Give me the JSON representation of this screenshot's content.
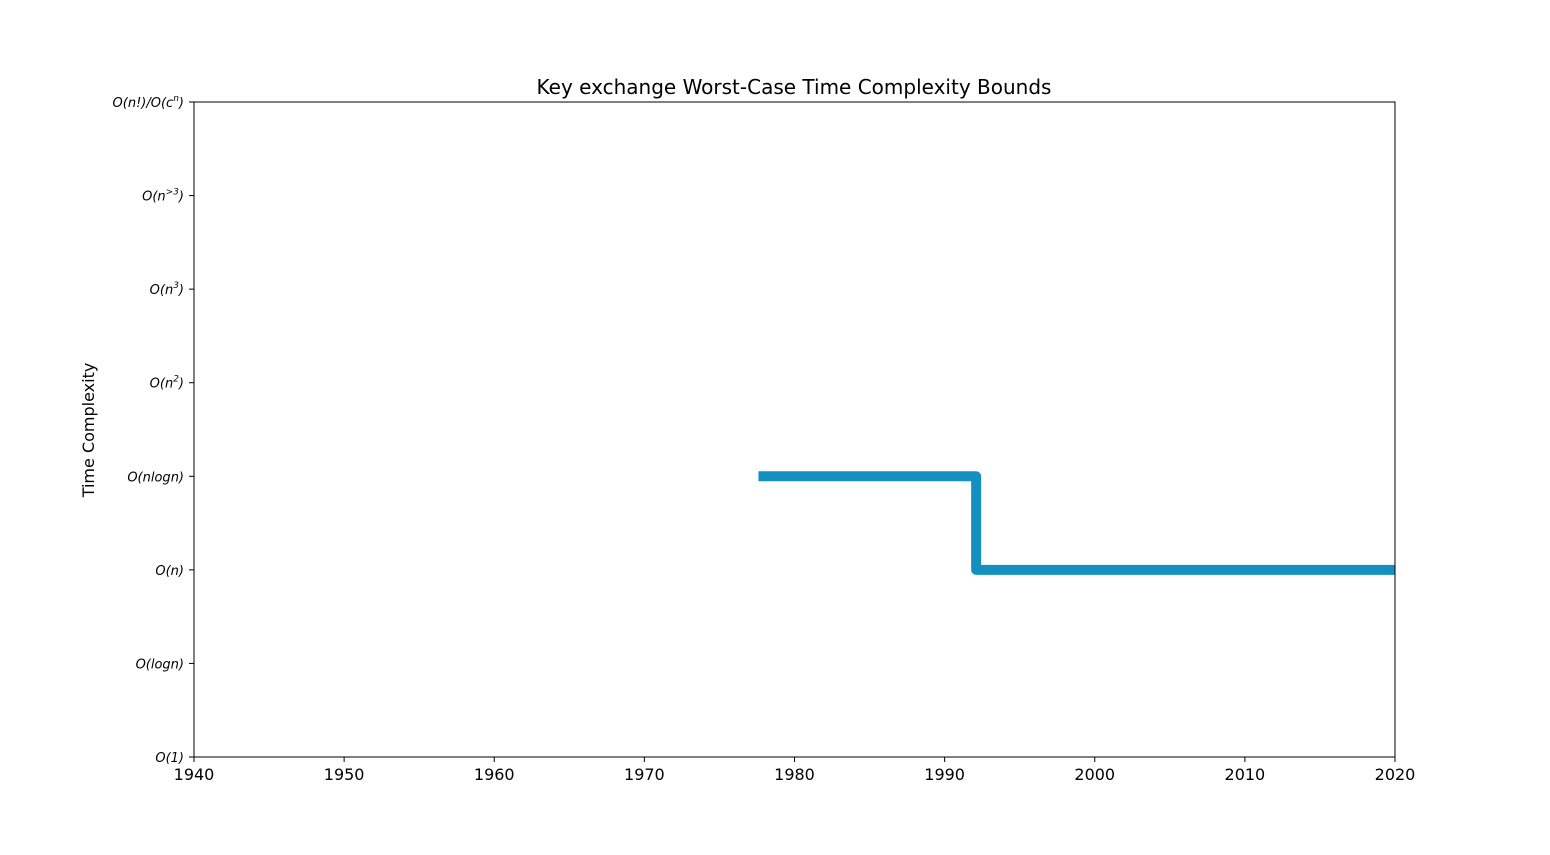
{
  "chart_data": {
    "type": "line",
    "title": "Key exchange Worst-Case Time Complexity Bounds",
    "xlabel": "",
    "ylabel": "Time Complexity",
    "xlim": [
      1940,
      2020
    ],
    "x_ticks": [
      "1940",
      "1950",
      "1960",
      "1970",
      "1980",
      "1990",
      "2000",
      "2010",
      "2020"
    ],
    "y_categories": [
      {
        "main": "O(1)",
        "sup": ""
      },
      {
        "main": "O(logn)",
        "sup": ""
      },
      {
        "main": "O(n)",
        "sup": ""
      },
      {
        "main": "O(nlogn)",
        "sup": ""
      },
      {
        "main": "O(n",
        "sup": "2",
        "tail": ")"
      },
      {
        "main": "O(n",
        "sup": "3",
        "tail": ")"
      },
      {
        "main": "O(n",
        "sup": ">3",
        "tail": ")"
      },
      {
        "main": "O(n!)/O(c",
        "sup": "n",
        "tail": ")"
      }
    ],
    "grid": false,
    "legend": "none",
    "series": [
      {
        "color": "#1490bf",
        "step": "post",
        "points": [
          {
            "x": 1977.6,
            "y": "O(nlogn)"
          },
          {
            "x": 1992.1,
            "y": "O(n)"
          },
          {
            "x": 2020,
            "y": "O(n)"
          }
        ]
      }
    ]
  }
}
